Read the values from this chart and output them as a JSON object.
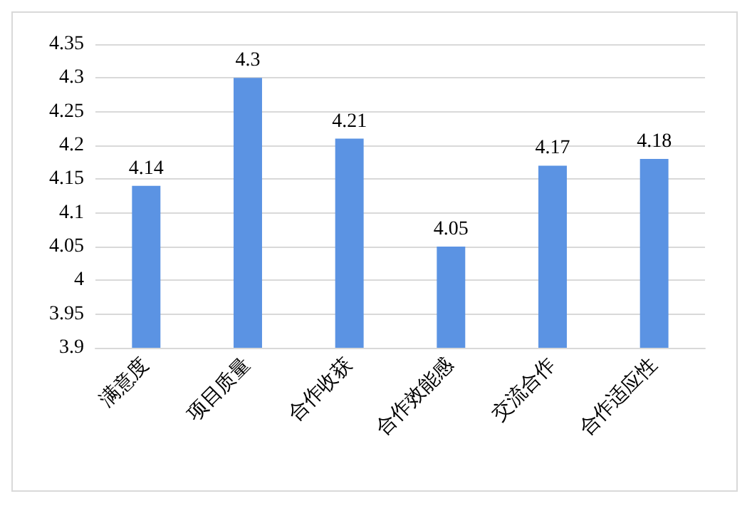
{
  "chart_data": {
    "type": "bar",
    "categories": [
      "满意度",
      "项目质量",
      "合作收获",
      "合作效能感",
      "交流合作",
      "合作适应性"
    ],
    "values": [
      4.14,
      4.3,
      4.21,
      4.05,
      4.17,
      4.18
    ],
    "color": "#5b93e3",
    "ylim": [
      3.9,
      4.35
    ],
    "yticks": [
      3.9,
      3.95,
      4,
      4.05,
      4.1,
      4.15,
      4.2,
      4.25,
      4.3,
      4.35
    ],
    "grid": "y",
    "data_labels": true
  }
}
